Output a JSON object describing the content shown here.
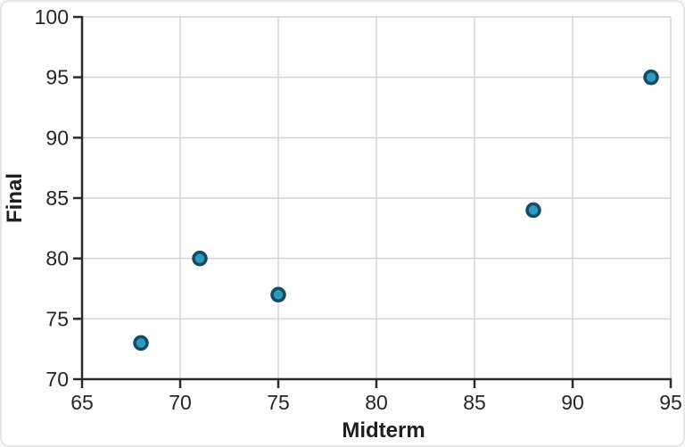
{
  "chart_data": {
    "type": "scatter",
    "title": "",
    "xlabel": "Midterm",
    "ylabel": "Final",
    "points": [
      {
        "x": 68,
        "y": 73
      },
      {
        "x": 71,
        "y": 80
      },
      {
        "x": 75,
        "y": 77
      },
      {
        "x": 88,
        "y": 84
      },
      {
        "x": 94,
        "y": 95
      }
    ],
    "xlim": [
      65,
      95
    ],
    "ylim": [
      70,
      100
    ],
    "xticks": [
      65,
      70,
      75,
      80,
      85,
      90,
      95
    ],
    "yticks": [
      70,
      75,
      80,
      85,
      90,
      95,
      100
    ],
    "grid": true,
    "legend": "none",
    "colors": {
      "marker_fill": "#2b9bc0",
      "marker_stroke": "#174a63",
      "grid": "#d5d5d5",
      "axis": "#2b2b2b",
      "background": "#ffffff"
    }
  }
}
